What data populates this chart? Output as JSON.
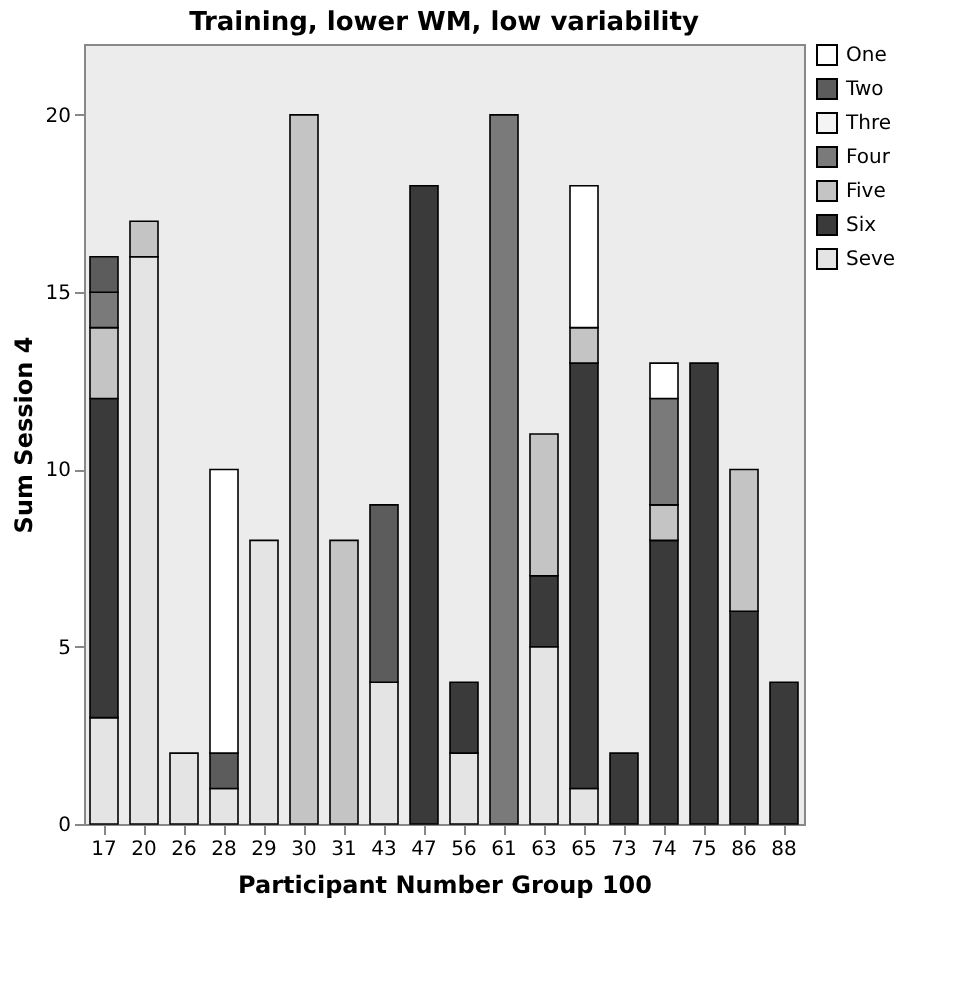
{
  "chart_data": {
    "type": "bar",
    "stacked": true,
    "title": "Training, lower WM, low variability",
    "xlabel": "Participant Number Group 100",
    "ylabel": "Sum Session 4",
    "categories": [
      "17",
      "20",
      "26",
      "28",
      "29",
      "30",
      "31",
      "43",
      "47",
      "56",
      "61",
      "63",
      "65",
      "73",
      "74",
      "75",
      "86",
      "88"
    ],
    "series": [
      {
        "name": "Seve",
        "color": "#e4e4e4",
        "values": [
          3,
          16,
          2,
          1,
          8,
          0,
          0,
          4,
          0,
          2,
          0,
          5,
          1,
          0,
          0,
          0,
          0,
          0
        ]
      },
      {
        "name": "Six",
        "color": "#3a3a3a",
        "values": [
          9,
          0,
          0,
          0,
          0,
          0,
          0,
          0,
          18,
          2,
          0,
          2,
          12,
          2,
          8,
          13,
          6,
          4
        ]
      },
      {
        "name": "Five",
        "color": "#c4c4c4",
        "values": [
          2,
          1,
          0,
          0,
          0,
          20,
          8,
          0,
          0,
          0,
          0,
          4,
          1,
          0,
          1,
          0,
          4,
          0
        ]
      },
      {
        "name": "Four",
        "color": "#7a7a7a",
        "values": [
          1,
          0,
          0,
          0,
          0,
          0,
          0,
          0,
          0,
          0,
          20,
          0,
          0,
          0,
          3,
          0,
          0,
          0
        ]
      },
      {
        "name": "Thre",
        "color": "#f4f4f4",
        "values": [
          0,
          0,
          0,
          0,
          0,
          0,
          0,
          0,
          0,
          0,
          0,
          0,
          0,
          0,
          0,
          0,
          0,
          0
        ]
      },
      {
        "name": "Two",
        "color": "#5c5c5c",
        "values": [
          1,
          0,
          0,
          1,
          0,
          0,
          0,
          5,
          0,
          0,
          0,
          0,
          0,
          0,
          0,
          0,
          0,
          0
        ]
      },
      {
        "name": "One",
        "color": "#ffffff",
        "values": [
          0,
          0,
          0,
          8,
          0,
          0,
          0,
          0,
          0,
          0,
          0,
          0,
          4,
          0,
          1,
          0,
          0,
          0
        ]
      }
    ],
    "ylim": [
      0,
      22
    ],
    "yticks": [
      0,
      5,
      10,
      15,
      20
    ],
    "grid": false,
    "legend": "top right"
  }
}
